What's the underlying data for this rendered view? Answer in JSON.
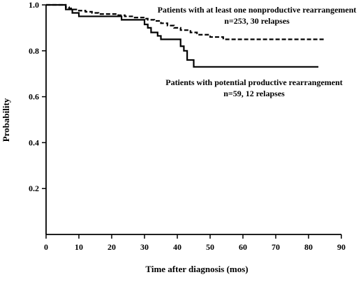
{
  "chart_data": {
    "type": "line",
    "xlabel": "Time after diagnosis (mos)",
    "ylabel": "Probability",
    "xlim": [
      0,
      90
    ],
    "ylim": [
      0,
      1.0
    ],
    "x_ticks": [
      0,
      10,
      20,
      30,
      40,
      50,
      60,
      70,
      80,
      90
    ],
    "y_ticks": [
      0.2,
      0.4,
      0.6,
      0.8,
      1.0
    ],
    "grid": false,
    "colors": {
      "axis": "#000000",
      "series": "#000000"
    },
    "annotations": [
      {
        "lines": [
          "Patients with at least one nonproductive rearrangement",
          "n=253, 30 relapses"
        ]
      },
      {
        "lines": [
          "Patients with potential productive rearrangement",
          "n=59, 12 relapses"
        ]
      }
    ],
    "series": [
      {
        "style": "dashed",
        "step": true,
        "x": [
          0,
          6,
          7,
          8,
          10,
          12,
          14,
          16,
          22,
          24,
          27,
          30,
          31,
          33,
          35,
          37,
          39,
          41,
          44,
          46,
          50,
          54,
          85
        ],
        "y": [
          1.0,
          0.99,
          0.985,
          0.98,
          0.975,
          0.97,
          0.965,
          0.96,
          0.955,
          0.95,
          0.945,
          0.94,
          0.935,
          0.93,
          0.92,
          0.91,
          0.9,
          0.89,
          0.88,
          0.87,
          0.86,
          0.85,
          0.85
        ]
      },
      {
        "style": "solid",
        "step": true,
        "x": [
          0,
          6,
          8,
          10,
          23,
          30,
          31,
          32,
          34,
          35,
          41,
          42,
          43,
          45,
          83
        ],
        "y": [
          1.0,
          0.98,
          0.965,
          0.95,
          0.935,
          0.915,
          0.9,
          0.88,
          0.865,
          0.85,
          0.82,
          0.8,
          0.76,
          0.73,
          0.73
        ]
      }
    ]
  }
}
